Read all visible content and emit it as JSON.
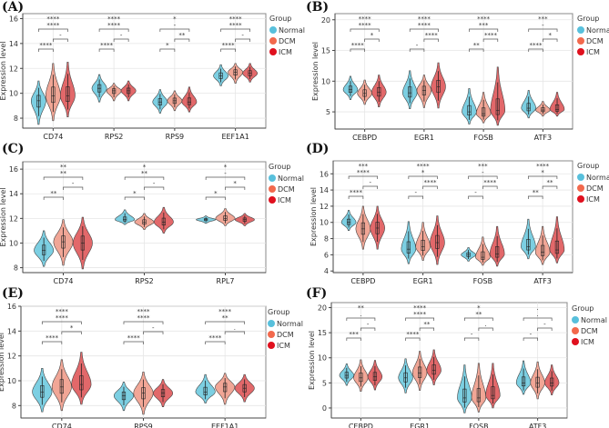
{
  "legend": {
    "title": "Group",
    "groups": [
      "Normal",
      "DCM",
      "ICM"
    ]
  },
  "colors": {
    "violin": {
      "Normal": "#7ccfe2",
      "DCM": "#f1a696",
      "ICM": "#e2686a"
    },
    "legend_dot": {
      "Normal": "#58c0dc",
      "DCM": "#f2694d",
      "ICM": "#e0101e"
    }
  },
  "chart_data": [
    {
      "panel": "(A)",
      "type": "violin",
      "ylabel": "Expression level",
      "ylim": [
        7.2,
        16.4
      ],
      "yticks": [
        8,
        10,
        12,
        14,
        16
      ],
      "genes": [
        {
          "name": "CD74",
          "sig": {
            "overall": "****",
            "normal_icm": "****",
            "dcm_icm": "-",
            "normal_dcm": "****"
          },
          "violins": [
            {
              "median": 9.4,
              "min": 7.5,
              "max": 11.0
            },
            {
              "median": 9.8,
              "min": 7.8,
              "max": 12.4
            },
            {
              "median": 9.8,
              "min": 8.1,
              "max": 12.5
            }
          ]
        },
        {
          "name": "RPS2",
          "sig": {
            "overall": "****",
            "normal_icm": "****",
            "dcm_icm": "-",
            "normal_dcm": "****"
          },
          "violins": [
            {
              "median": 10.4,
              "min": 9.3,
              "max": 11.5
            },
            {
              "median": 10.2,
              "min": 9.4,
              "max": 10.8
            },
            {
              "median": 10.2,
              "min": 9.4,
              "max": 11.0
            }
          ]
        },
        {
          "name": "RPS9",
          "sig": {
            "overall": "*",
            "normal_icm": "-",
            "dcm_icm": "**",
            "normal_dcm": "*"
          },
          "violins": [
            {
              "median": 9.3,
              "min": 8.4,
              "max": 10.3
            },
            {
              "median": 9.4,
              "min": 8.6,
              "max": 10.2
            },
            {
              "median": 9.3,
              "min": 8.5,
              "max": 10.5
            }
          ]
        },
        {
          "name": "EEF1A1",
          "sig": {
            "overall": "****",
            "normal_icm": "****",
            "dcm_icm": "-",
            "normal_dcm": "****"
          },
          "violins": [
            {
              "median": 11.4,
              "min": 10.6,
              "max": 12.3
            },
            {
              "median": 11.7,
              "min": 10.8,
              "max": 12.4
            },
            {
              "median": 11.6,
              "min": 10.9,
              "max": 12.4
            }
          ]
        }
      ]
    },
    {
      "panel": "(B)",
      "type": "violin",
      "ylabel": "Expression level",
      "ylim": [
        2.2,
        21
      ],
      "yticks": [
        5,
        10,
        15,
        20
      ],
      "genes": [
        {
          "name": "CEBPD",
          "sig": {
            "overall": "****",
            "normal_icm": "****",
            "dcm_icm": "*",
            "normal_dcm": "****"
          },
          "violins": [
            {
              "median": 8.6,
              "min": 7.0,
              "max": 10.8
            },
            {
              "median": 8.0,
              "min": 6.2,
              "max": 10.2
            },
            {
              "median": 8.2,
              "min": 5.8,
              "max": 11.0
            }
          ]
        },
        {
          "name": "EGR1",
          "sig": {
            "overall": "****",
            "normal_icm": "****",
            "dcm_icm": "****",
            "normal_dcm": "-"
          },
          "violins": [
            {
              "median": 8.1,
              "min": 5.5,
              "max": 11.7
            },
            {
              "median": 8.5,
              "min": 5.7,
              "max": 11.0
            },
            {
              "median": 9.1,
              "min": 5.6,
              "max": 13.0
            }
          ]
        },
        {
          "name": "FOSB",
          "sig": {
            "overall": "****",
            "normal_icm": "***",
            "dcm_icm": "****",
            "normal_dcm": "**"
          },
          "violins": [
            {
              "median": 5.0,
              "min": 3.0,
              "max": 8.8
            },
            {
              "median": 4.7,
              "min": 3.2,
              "max": 8.2
            },
            {
              "median": 5.2,
              "min": 2.8,
              "max": 12.3
            }
          ]
        },
        {
          "name": "ATF3",
          "sig": {
            "overall": "***",
            "normal_icm": "-",
            "dcm_icm": "*",
            "normal_dcm": "****"
          },
          "violins": [
            {
              "median": 5.6,
              "min": 4.0,
              "max": 8.5
            },
            {
              "median": 5.3,
              "min": 4.3,
              "max": 6.7
            },
            {
              "median": 5.4,
              "min": 4.3,
              "max": 8.2
            }
          ]
        }
      ]
    },
    {
      "panel": "(C)",
      "type": "violin",
      "ylabel": "Expression level",
      "ylim": [
        7.6,
        16.6
      ],
      "yticks": [
        8,
        10,
        12,
        14,
        16
      ],
      "genes": [
        {
          "name": "CD74",
          "sig": {
            "overall": "**",
            "normal_icm": "**",
            "dcm_icm": "-",
            "normal_dcm": "**"
          },
          "violins": [
            {
              "median": 9.4,
              "min": 8.1,
              "max": 11.0
            },
            {
              "median": 10.1,
              "min": 8.2,
              "max": 11.9
            },
            {
              "median": 10.0,
              "min": 7.9,
              "max": 12.1
            }
          ]
        },
        {
          "name": "RPS2",
          "sig": {
            "overall": "*",
            "normal_icm": "**",
            "dcm_icm": "-",
            "normal_dcm": "*"
          },
          "violins": [
            {
              "median": 11.9,
              "min": 11.5,
              "max": 12.7
            },
            {
              "median": 11.7,
              "min": 11.1,
              "max": 12.4
            },
            {
              "median": 11.7,
              "min": 10.8,
              "max": 12.9
            }
          ]
        },
        {
          "name": "RPL7",
          "sig": {
            "overall": "*",
            "normal_icm": "-",
            "dcm_icm": "*",
            "normal_dcm": "*"
          },
          "violins": [
            {
              "median": 11.9,
              "min": 11.6,
              "max": 12.2
            },
            {
              "median": 12.0,
              "min": 11.4,
              "max": 12.8
            },
            {
              "median": 11.9,
              "min": 11.4,
              "max": 12.4
            }
          ]
        }
      ]
    },
    {
      "panel": "(D)",
      "type": "violin",
      "ylabel": "Expression level",
      "ylim": [
        3.8,
        17.6
      ],
      "yticks": [
        4,
        6,
        8,
        10,
        12,
        14,
        16
      ],
      "genes": [
        {
          "name": "CEBPD",
          "sig": {
            "overall": "***",
            "normal_icm": "****",
            "dcm_icm": "-",
            "normal_dcm": "****"
          },
          "violins": [
            {
              "median": 10.0,
              "min": 9.0,
              "max": 11.5
            },
            {
              "median": 9.2,
              "min": 6.7,
              "max": 12.0
            },
            {
              "median": 9.3,
              "min": 6.7,
              "max": 12.0
            }
          ]
        },
        {
          "name": "EGR1",
          "sig": {
            "overall": "****",
            "normal_icm": "*",
            "dcm_icm": "****",
            "normal_dcm": "-"
          },
          "violins": [
            {
              "median": 6.7,
              "min": 4.9,
              "max": 10.1
            },
            {
              "median": 7.0,
              "min": 5.3,
              "max": 10.0
            },
            {
              "median": 7.5,
              "min": 4.8,
              "max": 10.8
            }
          ]
        },
        {
          "name": "FOSB",
          "sig": {
            "overall": "***",
            "normal_icm": "-",
            "dcm_icm": "****",
            "normal_dcm": "-"
          },
          "violins": [
            {
              "median": 6.0,
              "min": 5.2,
              "max": 6.9
            },
            {
              "median": 5.7,
              "min": 4.7,
              "max": 8.2
            },
            {
              "median": 6.1,
              "min": 4.6,
              "max": 9.5
            }
          ]
        },
        {
          "name": "ATF3",
          "sig": {
            "overall": "****",
            "normal_icm": "*",
            "dcm_icm": "**",
            "normal_dcm": "**"
          },
          "violins": [
            {
              "median": 7.0,
              "min": 5.5,
              "max": 10.4
            },
            {
              "median": 6.3,
              "min": 4.8,
              "max": 9.5
            },
            {
              "median": 6.6,
              "min": 5.0,
              "max": 10.7
            }
          ]
        }
      ]
    },
    {
      "panel": "(E)",
      "type": "violin",
      "ylabel": "Expression level",
      "ylim": [
        7.0,
        16.0
      ],
      "yticks": [
        8,
        10,
        12,
        14,
        16
      ],
      "genes": [
        {
          "name": "CD74",
          "sig": {
            "overall": "****",
            "normal_icm": "****",
            "dcm_icm": "*",
            "normal_dcm": "****"
          },
          "violins": [
            {
              "median": 9.1,
              "min": 7.5,
              "max": 11.0
            },
            {
              "median": 9.5,
              "min": 7.6,
              "max": 11.7
            },
            {
              "median": 9.7,
              "min": 8.1,
              "max": 12.3
            }
          ]
        },
        {
          "name": "RPS9",
          "sig": {
            "overall": "****",
            "normal_icm": "****",
            "dcm_icm": "-",
            "normal_dcm": "****"
          },
          "violins": [
            {
              "median": 8.8,
              "min": 7.6,
              "max": 9.9
            },
            {
              "median": 9.0,
              "min": 7.3,
              "max": 10.7
            },
            {
              "median": 9.0,
              "min": 7.9,
              "max": 10.1
            }
          ]
        },
        {
          "name": "EEF1A1",
          "sig": {
            "overall": "****",
            "normal_icm": "**",
            "dcm_icm": ".",
            "normal_dcm": "****"
          },
          "violins": [
            {
              "median": 9.1,
              "min": 8.2,
              "max": 10.5
            },
            {
              "median": 9.5,
              "min": 8.1,
              "max": 10.6
            },
            {
              "median": 9.4,
              "min": 8.3,
              "max": 10.5
            }
          ]
        }
      ]
    },
    {
      "panel": "(F)",
      "type": "violin",
      "ylabel": "Expression level",
      "ylim": [
        -2,
        21
      ],
      "yticks": [
        0,
        5,
        10,
        15,
        20
      ],
      "genes": [
        {
          "name": "CEBPD",
          "sig": {
            "overall": "**",
            "normal_icm": ".",
            "dcm_icm": "-",
            "normal_dcm": "***"
          },
          "violins": [
            {
              "median": 6.5,
              "min": 4.5,
              "max": 8.8
            },
            {
              "median": 6.0,
              "min": 3.3,
              "max": 9.6
            },
            {
              "median": 6.2,
              "min": 3.6,
              "max": 9.5
            }
          ]
        },
        {
          "name": "EGR1",
          "sig": {
            "overall": "****",
            "normal_icm": "****",
            "dcm_icm": "**",
            "normal_dcm": "****"
          },
          "violins": [
            {
              "median": 6.0,
              "min": 3.0,
              "max": 9.8
            },
            {
              "median": 7.0,
              "min": 3.5,
              "max": 11.3
            },
            {
              "median": 7.5,
              "min": 4.6,
              "max": 11.6
            }
          ]
        },
        {
          "name": "FOSB",
          "sig": {
            "overall": "*",
            "normal_icm": "**",
            "dcm_icm": ".",
            "normal_dcm": "-"
          },
          "violins": [
            {
              "median": 2.0,
              "min": -1.0,
              "max": 8.6
            },
            {
              "median": 2.0,
              "min": -0.8,
              "max": 8.9
            },
            {
              "median": 2.5,
              "min": 0.0,
              "max": 8.9
            }
          ]
        },
        {
          "name": "ATF3",
          "sig": {
            "overall": ".",
            "normal_icm": ".",
            "dcm_icm": "-",
            "normal_dcm": "-"
          },
          "violins": [
            {
              "median": 5.0,
              "min": 2.7,
              "max": 9.4
            },
            {
              "median": 5.0,
              "min": 1.8,
              "max": 9.2
            },
            {
              "median": 5.0,
              "min": 2.6,
              "max": 8.6
            }
          ]
        }
      ]
    }
  ]
}
